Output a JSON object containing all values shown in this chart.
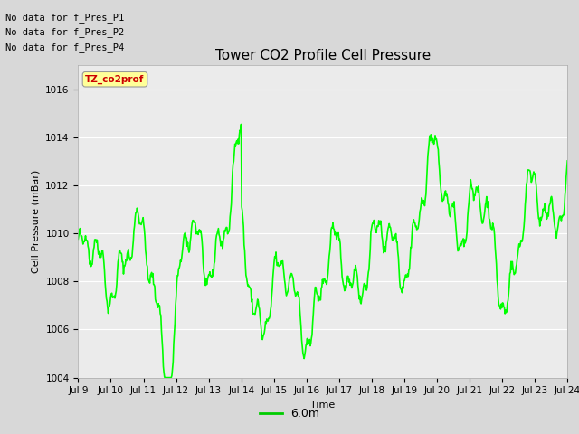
{
  "title": "Tower CO2 Profile Cell Pressure",
  "xlabel": "Time",
  "ylabel": "Cell Pressure (mBar)",
  "ylim": [
    1004,
    1017
  ],
  "yticks": [
    1004,
    1006,
    1008,
    1010,
    1012,
    1014,
    1016
  ],
  "xtick_labels": [
    "Jul 9",
    "Jul 10",
    "Jul 11",
    "Jul 12",
    "Jul 13",
    "Jul 14",
    "Jul 15",
    "Jul 16",
    "Jul 17",
    "Jul 18",
    "Jul 19",
    "Jul 20",
    "Jul 21",
    "Jul 22",
    "Jul 23",
    "Jul 24"
  ],
  "line_color": "#00ff00",
  "line_width": 1.2,
  "background_color": "#d8d8d8",
  "plot_bg_color": "#ebebeb",
  "legend_label": "6.0m",
  "legend_line_color": "#00cc00",
  "no_data_texts": [
    "No data for f_Pres_P1",
    "No data for f_Pres_P2",
    "No data for f_Pres_P4"
  ],
  "annotation_text": "TZ_co2prof",
  "annotation_color": "#cc0000",
  "annotation_bg": "#ffff99",
  "title_fontsize": 11,
  "axis_fontsize": 8,
  "tick_fontsize": 7.5
}
